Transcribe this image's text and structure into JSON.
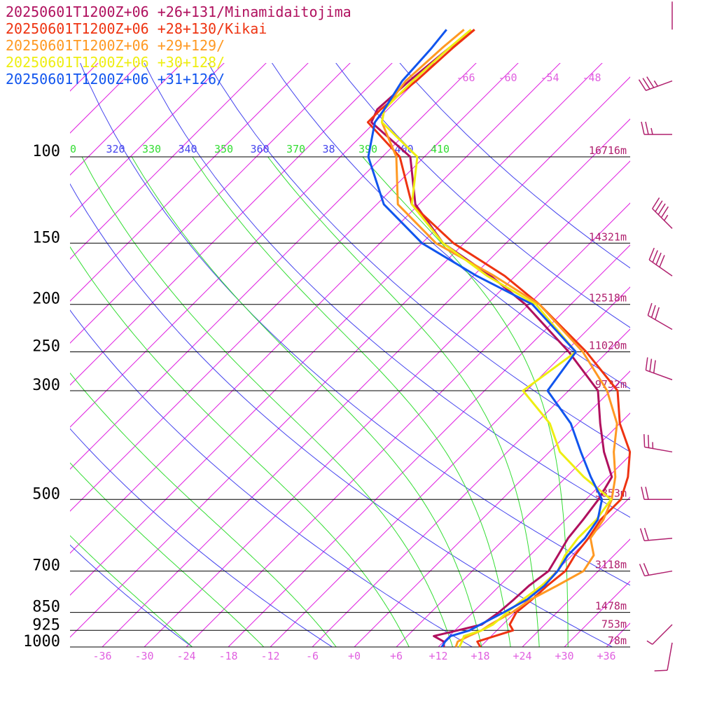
{
  "colors": {
    "isobar": "#000000",
    "isotherm": "#e020e0",
    "dry_adiabat": "#4444ee",
    "moist_adiabat": "#33dd33",
    "height_label": "#b0206e",
    "temp_label": "#e060e0",
    "barb": "#b0206e"
  },
  "chart_data": {
    "type": "line",
    "title": "",
    "xlabel": "",
    "ylabel": "",
    "xlim": [
      -40,
      40
    ],
    "temperature_ticks": [
      "-36",
      "-30",
      "-24",
      "-18",
      "-12",
      "-6",
      "+0",
      "+6",
      "+12",
      "+18",
      "+24",
      "+30",
      "+36"
    ],
    "upper_temperature_ticks": [
      "-66",
      "-60",
      "-54",
      "-48"
    ],
    "pressure_levels": [
      {
        "p": 100,
        "label": "100",
        "height": "16716m"
      },
      {
        "p": 150,
        "label": "150",
        "height": "14321m"
      },
      {
        "p": 200,
        "label": "200",
        "height": "12518m"
      },
      {
        "p": 250,
        "label": "250",
        "height": "11020m"
      },
      {
        "p": 300,
        "label": "300",
        "height": "9732m"
      },
      {
        "p": 500,
        "label": "500",
        "height": "5853m"
      },
      {
        "p": 700,
        "label": "700",
        "height": "3118m"
      },
      {
        "p": 850,
        "label": "850",
        "height": "1478m"
      },
      {
        "p": 925,
        "label": "925",
        "height": "753m"
      },
      {
        "p": 1000,
        "label": "1000",
        "height": "78m"
      }
    ],
    "theta_labels": [
      {
        "text": "0",
        "color": "#33dd33"
      },
      {
        "text": "320",
        "color": "#4444ee"
      },
      {
        "text": "330",
        "color": "#33dd33"
      },
      {
        "text": "340",
        "color": "#4444ee"
      },
      {
        "text": "350",
        "color": "#33dd33"
      },
      {
        "text": "360",
        "color": "#4444ee"
      },
      {
        "text": "370",
        "color": "#33dd33"
      },
      {
        "text": "38",
        "color": "#4444ee"
      },
      {
        "text": "390",
        "color": "#33dd33"
      },
      {
        "text": "400",
        "color": "#4444ee"
      },
      {
        "text": "410",
        "color": "#33dd33"
      }
    ],
    "series": [
      {
        "name": "20250601T1200Z+06 +26+131/Minamidaitojima",
        "color": "#b0105e",
        "points": [
          [
            1000,
            12.8
          ],
          [
            975,
            12.0
          ],
          [
            950,
            9.8
          ],
          [
            925,
            12.4
          ],
          [
            900,
            15.0
          ],
          [
            850,
            15.7
          ],
          [
            800,
            16.0
          ],
          [
            750,
            16.2
          ],
          [
            700,
            16.9
          ],
          [
            650,
            16.0
          ],
          [
            600,
            15.0
          ],
          [
            550,
            14.5
          ],
          [
            500,
            13.8
          ],
          [
            450,
            12.5
          ],
          [
            400,
            7.8
          ],
          [
            350,
            3.2
          ],
          [
            300,
            -1.8
          ],
          [
            250,
            -11.5
          ],
          [
            200,
            -24.5
          ],
          [
            175,
            -33.5
          ],
          [
            150,
            -45.0
          ],
          [
            125,
            -54.5
          ],
          [
            100,
            -62.0
          ],
          [
            85,
            -72.5
          ],
          [
            80,
            -73.5
          ],
          [
            70,
            -73.0
          ],
          [
            60,
            -72.0
          ],
          [
            55,
            -71.0
          ]
        ]
      },
      {
        "name": "20250601T1200Z+06 +28+130/Kikai",
        "color": "#ee3311",
        "points": [
          [
            1000,
            18.0
          ],
          [
            975,
            16.8
          ],
          [
            950,
            18.5
          ],
          [
            925,
            20.3
          ],
          [
            900,
            19.0
          ],
          [
            850,
            18.2
          ],
          [
            800,
            18.6
          ],
          [
            750,
            18.8
          ],
          [
            700,
            19.3
          ],
          [
            650,
            18.4
          ],
          [
            600,
            17.9
          ],
          [
            550,
            17.0
          ],
          [
            500,
            17.0
          ],
          [
            450,
            14.8
          ],
          [
            400,
            11.5
          ],
          [
            350,
            6.0
          ],
          [
            300,
            1.0
          ],
          [
            250,
            -9.0
          ],
          [
            200,
            -22.5
          ],
          [
            175,
            -31.5
          ],
          [
            150,
            -43.5
          ],
          [
            125,
            -55.0
          ],
          [
            100,
            -63.5
          ],
          [
            85,
            -73.0
          ],
          [
            80,
            -73.0
          ],
          [
            70,
            -72.0
          ],
          [
            60,
            -71.5
          ],
          [
            55,
            -71.0
          ]
        ]
      },
      {
        "name": "20250601T1200Z+06 +29+129/",
        "color": "#ff9922",
        "points": [
          [
            1000,
            14.5
          ],
          [
            975,
            14.0
          ],
          [
            950,
            14.8
          ],
          [
            925,
            15.8
          ],
          [
            900,
            16.2
          ],
          [
            850,
            17.6
          ],
          [
            800,
            18.4
          ],
          [
            750,
            20.2
          ],
          [
            700,
            21.9
          ],
          [
            650,
            21.1
          ],
          [
            600,
            18.2
          ],
          [
            550,
            17.4
          ],
          [
            500,
            15.7
          ],
          [
            450,
            13.0
          ],
          [
            400,
            9.2
          ],
          [
            350,
            5.6
          ],
          [
            300,
            -0.5
          ],
          [
            250,
            -9.5
          ],
          [
            200,
            -22.5
          ],
          [
            175,
            -33.0
          ],
          [
            150,
            -46.0
          ],
          [
            125,
            -57.0
          ],
          [
            100,
            -64.0
          ],
          [
            85,
            -71.0
          ],
          [
            80,
            -72.5
          ],
          [
            70,
            -73.5
          ],
          [
            60,
            -73.0
          ],
          [
            55,
            -72.5
          ]
        ]
      },
      {
        "name": "20250601T1200Z+06 +30+128/",
        "color": "#eeee11",
        "points": [
          [
            1000,
            15.0
          ],
          [
            975,
            14.6
          ],
          [
            950,
            14.1
          ],
          [
            925,
            15.8
          ],
          [
            900,
            16.6
          ],
          [
            850,
            16.9
          ],
          [
            800,
            17.3
          ],
          [
            750,
            18.0
          ],
          [
            700,
            18.2
          ],
          [
            650,
            17.0
          ],
          [
            600,
            16.4
          ],
          [
            550,
            16.4
          ],
          [
            500,
            15.6
          ],
          [
            450,
            8.5
          ],
          [
            400,
            1.5
          ],
          [
            350,
            -4.0
          ],
          [
            300,
            -12.5
          ],
          [
            250,
            -10.5
          ],
          [
            200,
            -23.0
          ],
          [
            175,
            -34.0
          ],
          [
            150,
            -45.0
          ],
          [
            125,
            -55.0
          ],
          [
            100,
            -61.0
          ],
          [
            85,
            -71.0
          ],
          [
            80,
            -72.5
          ],
          [
            70,
            -72.5
          ],
          [
            60,
            -72.0
          ],
          [
            55,
            -71.5
          ]
        ]
      },
      {
        "name": "20250601T1200Z+06 +31+126/",
        "color": "#1155ee",
        "points": [
          [
            1000,
            12.5
          ],
          [
            975,
            12.2
          ],
          [
            950,
            12.2
          ],
          [
            925,
            14.1
          ],
          [
            900,
            14.8
          ],
          [
            850,
            16.4
          ],
          [
            800,
            17.9
          ],
          [
            750,
            18.4
          ],
          [
            700,
            18.2
          ],
          [
            650,
            17.4
          ],
          [
            600,
            17.4
          ],
          [
            550,
            16.6
          ],
          [
            500,
            14.3
          ],
          [
            450,
            9.5
          ],
          [
            400,
            4.5
          ],
          [
            350,
            -1.0
          ],
          [
            300,
            -9.0
          ],
          [
            250,
            -10.5
          ],
          [
            200,
            -23.5
          ],
          [
            175,
            -35.5
          ],
          [
            150,
            -48.0
          ],
          [
            125,
            -59.0
          ],
          [
            100,
            -68.0
          ],
          [
            85,
            -72.0
          ],
          [
            80,
            -72.5
          ],
          [
            70,
            -74.0
          ],
          [
            60,
            -74.5
          ],
          [
            55,
            -75.0
          ]
        ]
      }
    ],
    "wind_barbs": [
      {
        "p": 55,
        "speed": 0,
        "dir": 0
      },
      {
        "p": 70,
        "speed": 35,
        "dir": 250
      },
      {
        "p": 90,
        "speed": 25,
        "dir": 270
      },
      {
        "p": 140,
        "speed": 45,
        "dir": 315
      },
      {
        "p": 175,
        "speed": 40,
        "dir": 305
      },
      {
        "p": 225,
        "speed": 30,
        "dir": 300
      },
      {
        "p": 285,
        "speed": 30,
        "dir": 290
      },
      {
        "p": 400,
        "speed": 25,
        "dir": 280
      },
      {
        "p": 500,
        "speed": 20,
        "dir": 270
      },
      {
        "p": 600,
        "speed": 20,
        "dir": 265
      },
      {
        "p": 700,
        "speed": 20,
        "dir": 260
      },
      {
        "p": 900,
        "speed": 5,
        "dir": 225
      },
      {
        "p": 980,
        "speed": 10,
        "dir": 190
      }
    ]
  }
}
